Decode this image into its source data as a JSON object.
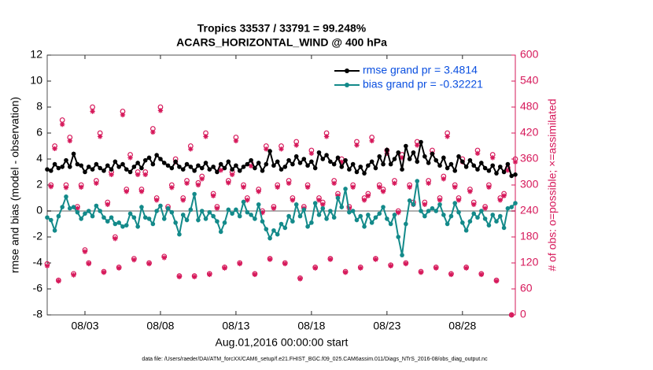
{
  "chart_data": {
    "type": "line",
    "title": "Tropics 33537 / 33791 = 99.248%",
    "subtitle": "ACARS_HORIZONTAL_WIND @ 400 hPa",
    "ylabel": "rmse and bias (model - observation)",
    "y2label": "# of obs: o=possible; ×=assimilated",
    "xlabel": "Aug.01,2016 00:00:00 start",
    "footnote": "data file: /Users/raeder/DAI/ATM_forcXX/CAM6_setup/f.e21.FHIST_BGC.f09_025.CAM6assim.011/Diags_NTrS_2016-08/obs_diag_output.nc",
    "legend": "northeast",
    "zero_line": 0,
    "xlim": [
      -0.5,
      30.5
    ],
    "xticks": [
      {
        "value": 2,
        "label": "08/03"
      },
      {
        "value": 7,
        "label": "08/08"
      },
      {
        "value": 12,
        "label": "08/13"
      },
      {
        "value": 17,
        "label": "08/18"
      },
      {
        "value": 22,
        "label": "08/23"
      },
      {
        "value": 27,
        "label": "08/28"
      }
    ],
    "ylim": [
      -8,
      12
    ],
    "yticks": [
      -8,
      -6,
      -4,
      -2,
      0,
      2,
      4,
      6,
      8,
      10,
      12
    ],
    "y2lim": [
      0,
      600
    ],
    "y2ticks": [
      0,
      60,
      120,
      180,
      240,
      300,
      360,
      420,
      480,
      540,
      600
    ],
    "x": [
      -0.5,
      -0.25,
      0,
      0.25,
      0.5,
      0.75,
      1,
      1.25,
      1.5,
      1.75,
      2,
      2.25,
      2.5,
      2.75,
      3,
      3.25,
      3.5,
      3.75,
      4,
      4.25,
      4.5,
      4.75,
      5,
      5.25,
      5.5,
      5.75,
      6,
      6.25,
      6.5,
      6.75,
      7,
      7.25,
      7.5,
      7.75,
      8,
      8.25,
      8.5,
      8.75,
      9,
      9.25,
      9.5,
      9.75,
      10,
      10.25,
      10.5,
      10.75,
      11,
      11.25,
      11.5,
      11.75,
      12,
      12.25,
      12.5,
      12.75,
      13,
      13.25,
      13.5,
      13.75,
      14,
      14.25,
      14.5,
      14.75,
      15,
      15.25,
      15.5,
      15.75,
      16,
      16.25,
      16.5,
      16.75,
      17,
      17.25,
      17.5,
      17.75,
      18,
      18.25,
      18.5,
      18.75,
      19,
      19.25,
      19.5,
      19.75,
      20,
      20.25,
      20.5,
      20.75,
      21,
      21.25,
      21.5,
      21.75,
      22,
      22.25,
      22.5,
      22.75,
      23,
      23.25,
      23.5,
      23.75,
      24,
      24.25,
      24.5,
      24.75,
      25,
      25.25,
      25.5,
      25.75,
      26,
      26.25,
      26.5,
      26.75,
      27,
      27.25,
      27.5,
      27.75,
      28,
      28.25,
      28.5,
      28.75,
      29,
      29.25,
      29.5,
      29.75,
      30,
      30.25,
      30.5
    ],
    "series": [
      {
        "name": "rmse grand pr = 3.4814",
        "color": "#000000",
        "marker": "dot",
        "values": [
          3.2,
          3.1,
          3.6,
          3.3,
          3.4,
          3.9,
          3.4,
          4.4,
          3.6,
          3.5,
          3.0,
          3.4,
          3.2,
          3.6,
          3.3,
          3.1,
          3.5,
          3.2,
          3.8,
          3.4,
          3.6,
          3.2,
          3.0,
          3.4,
          3.7,
          3.3,
          3.9,
          4.1,
          3.6,
          4.3,
          4.0,
          3.7,
          3.5,
          3.3,
          3.8,
          3.4,
          3.2,
          3.6,
          3.4,
          3.1,
          3.5,
          3.3,
          3.7,
          3.2,
          3.4,
          3.0,
          3.6,
          3.3,
          3.8,
          3.2,
          3.5,
          3.1,
          3.4,
          3.6,
          3.9,
          3.3,
          3.7,
          3.1,
          3.6,
          4.6,
          3.5,
          3.8,
          3.2,
          3.4,
          3.9,
          3.6,
          4.2,
          3.7,
          4.0,
          3.5,
          3.8,
          3.3,
          4.5,
          4.0,
          4.3,
          3.8,
          3.6,
          4.1,
          3.4,
          3.9,
          3.2,
          3.6,
          3.0,
          3.4,
          2.9,
          3.5,
          3.8,
          3.3,
          4.2,
          3.6,
          4.7,
          3.6,
          4.0,
          4.5,
          3.2,
          5.0,
          4.0,
          4.5,
          3.8,
          5.3,
          4.2,
          3.7,
          4.4,
          3.9,
          3.5,
          4.1,
          3.3,
          3.6,
          3.1,
          4.2,
          3.8,
          3.4,
          3.9,
          3.5,
          3.2,
          3.7,
          3.3,
          3.1,
          3.5,
          2.9,
          3.4,
          3.0,
          3.6,
          2.7,
          2.8
        ]
      },
      {
        "name": "bias grand pr = -0.32221",
        "color": "#138a8a",
        "marker": "dot",
        "values": [
          -0.5,
          -0.7,
          -1.5,
          -0.4,
          0.3,
          1.1,
          0.2,
          0.3,
          -0.1,
          -0.6,
          -0.2,
          0.0,
          -0.4,
          0.4,
          0.0,
          -0.5,
          -0.8,
          -0.5,
          -1.0,
          -0.9,
          -1.2,
          -1.1,
          -0.2,
          -0.5,
          -1.2,
          0.3,
          -0.5,
          -0.6,
          -1.0,
          0.0,
          0.4,
          -0.6,
          0.2,
          -0.1,
          -0.9,
          -1.8,
          -0.3,
          -0.7,
          0.1,
          1.3,
          -0.7,
          0.0,
          -0.6,
          -0.1,
          -0.4,
          -0.8,
          -1.6,
          -0.9,
          0.1,
          -0.2,
          0.1,
          -0.4,
          0.7,
          -0.1,
          -0.3,
          -0.6,
          0.5,
          -0.8,
          -1.4,
          -2.1,
          -1.5,
          -1.8,
          -1.0,
          -1.3,
          -0.4,
          -0.8,
          0.5,
          -0.4,
          0.1,
          -1.2,
          -0.9,
          0.6,
          -0.3,
          0.2,
          -0.6,
          0.0,
          -0.5,
          1.0,
          0.3,
          1.7,
          -0.1,
          0.0,
          -0.7,
          -0.4,
          -1.2,
          -0.3,
          -0.9,
          -0.5,
          -0.2,
          0.3,
          -0.6,
          -1.0,
          -0.3,
          -2.0,
          -3.4,
          -1.0,
          0.8,
          0.5,
          2.3,
          0.0,
          -0.4,
          0.0,
          0.2,
          0.0,
          0.5,
          -0.3,
          -1.0,
          -0.4,
          0.6,
          -0.1,
          -0.9,
          -1.5,
          -0.8,
          -0.2,
          -0.5,
          0.0,
          -0.6,
          -1.1,
          -0.3,
          -0.8,
          -0.4,
          -1.3,
          0.2,
          0.3,
          0.6
        ]
      },
      {
        "color": "#d6185a",
        "marker": "circle",
        "axis": "y2",
        "values": [
          118,
          300,
          390,
          80,
          450,
          300,
          410,
          95,
          250,
          300,
          150,
          120,
          480,
          310,
          420,
          100,
          260,
          330,
          180,
          110,
          470,
          290,
          370,
          130,
          330,
          290,
          330,
          120,
          430,
          270,
          480,
          135,
          250,
          300,
          360,
          90,
          270,
          310,
          390,
          90,
          305,
          320,
          420,
          95,
          280,
          250,
          340,
          110,
          310,
          330,
          410,
          120,
          300,
          270,
          350,
          95,
          290,
          240,
          390,
          130,
          250,
          300,
          390,
          120,
          310,
          270,
          400,
          85,
          250,
          300,
          380,
          110,
          270,
          260,
          420,
          130,
          310,
          280,
          360,
          100,
          250,
          300,
          400,
          110,
          270,
          280,
          410,
          130,
          300,
          290,
          380,
          115,
          310,
          240,
          370,
          120,
          300,
          260,
          400,
          100,
          260,
          310,
          380,
          110,
          270,
          320,
          420,
          95,
          300,
          270,
          360,
          110,
          290,
          260,
          380,
          95,
          250,
          300,
          370,
          80,
          270,
          280,
          340,
          0,
          360
        ]
      },
      {
        "color": "#d6185a",
        "marker": "star",
        "axis": "y2",
        "values": [
          113,
          296,
          384,
          78,
          440,
          294,
          402,
          92,
          246,
          295,
          146,
          118,
          470,
          304,
          412,
          98,
          255,
          324,
          176,
          108,
          462,
          285,
          363,
          127,
          324,
          285,
          324,
          118,
          422,
          265,
          472,
          132,
          246,
          294,
          353,
          88,
          265,
          304,
          383,
          88,
          300,
          314,
          412,
          93,
          275,
          246,
          334,
          108,
          305,
          324,
          402,
          118,
          295,
          265,
          344,
          93,
          285,
          236,
          383,
          128,
          246,
          295,
          383,
          118,
          304,
          265,
          392,
          83,
          246,
          295,
          373,
          108,
          265,
          255,
          412,
          128,
          304,
          275,
          353,
          98,
          246,
          295,
          392,
          108,
          265,
          275,
          402,
          128,
          295,
          285,
          373,
          113,
          304,
          236,
          363,
          118,
          295,
          255,
          392,
          98,
          255,
          304,
          373,
          108,
          265,
          314,
          412,
          93,
          295,
          265,
          353,
          108,
          285,
          255,
          373,
          93,
          246,
          295,
          363,
          78,
          265,
          275,
          334,
          0,
          353
        ]
      }
    ]
  }
}
